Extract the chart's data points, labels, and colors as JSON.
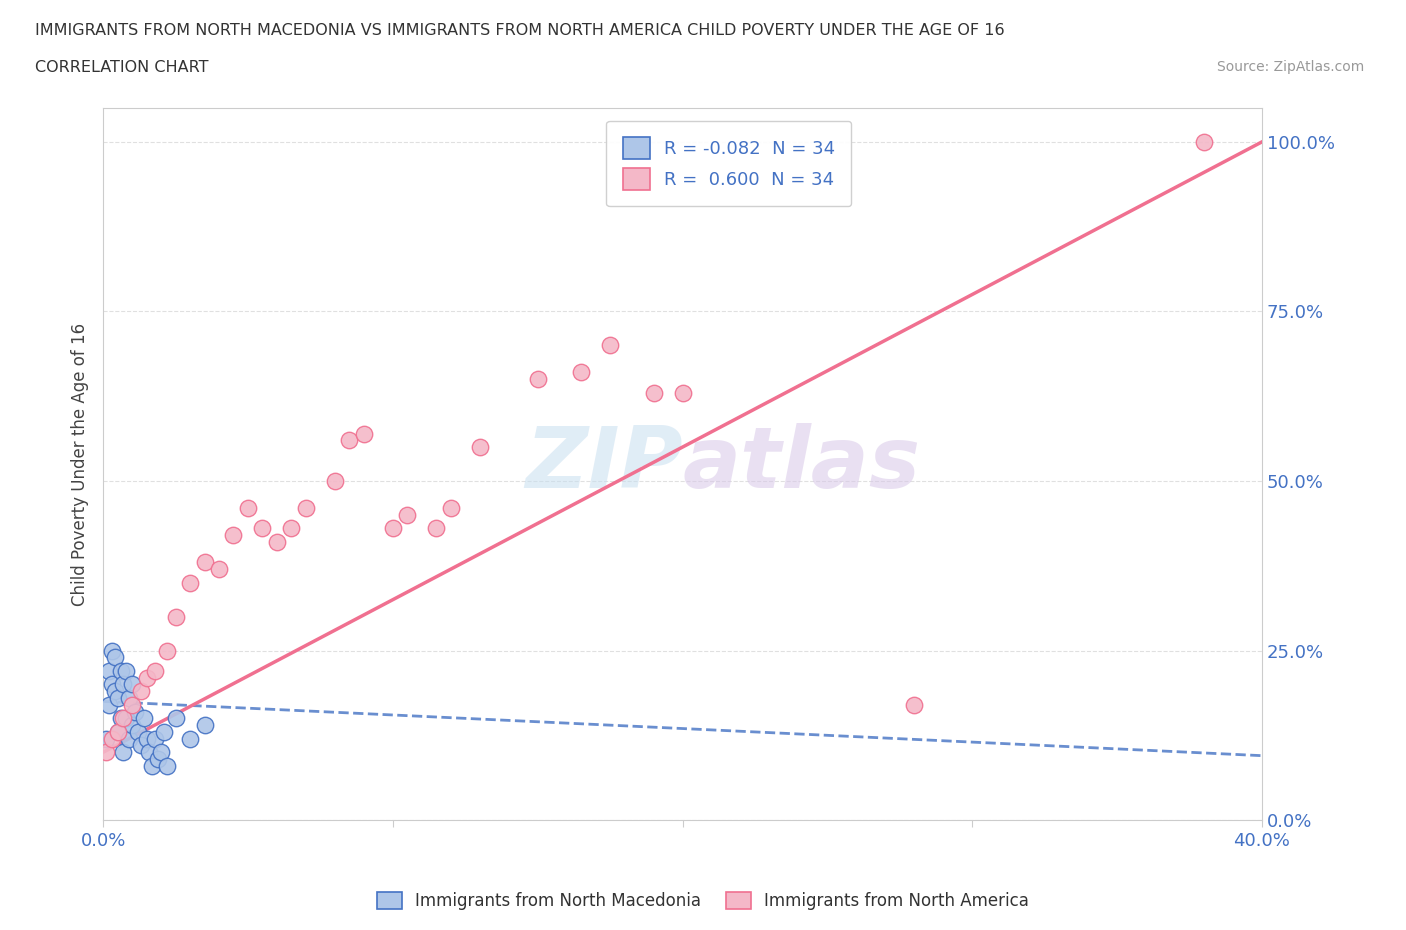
{
  "title": "IMMIGRANTS FROM NORTH MACEDONIA VS IMMIGRANTS FROM NORTH AMERICA CHILD POVERTY UNDER THE AGE OF 16",
  "subtitle": "CORRELATION CHART",
  "source": "Source: ZipAtlas.com",
  "xlabel_ticks": [
    "0.0%",
    "",
    "",
    "",
    "40.0%"
  ],
  "ylabel_ticks": [
    "0.0%",
    "25.0%",
    "50.0%",
    "75.0%",
    "100.0%"
  ],
  "xlim": [
    0.0,
    0.4
  ],
  "ylim": [
    0.0,
    1.05
  ],
  "legend_label1": "Immigrants from North Macedonia",
  "legend_label2": "Immigrants from North America",
  "R1": "-0.082",
  "R2": "0.600",
  "N1": "34",
  "N2": "34",
  "color_blue": "#aec6e8",
  "color_pink": "#f4b8c8",
  "color_blue_dark": "#4472c4",
  "color_pink_dark": "#f07090",
  "scatter_blue_x": [
    0.001,
    0.002,
    0.002,
    0.003,
    0.003,
    0.004,
    0.004,
    0.005,
    0.005,
    0.006,
    0.006,
    0.007,
    0.007,
    0.008,
    0.008,
    0.009,
    0.009,
    0.01,
    0.01,
    0.011,
    0.012,
    0.013,
    0.014,
    0.015,
    0.016,
    0.017,
    0.018,
    0.019,
    0.02,
    0.021,
    0.022,
    0.025,
    0.03,
    0.035
  ],
  "scatter_blue_y": [
    0.12,
    0.17,
    0.22,
    0.2,
    0.25,
    0.19,
    0.24,
    0.13,
    0.18,
    0.22,
    0.15,
    0.2,
    0.1,
    0.15,
    0.22,
    0.18,
    0.12,
    0.14,
    0.2,
    0.16,
    0.13,
    0.11,
    0.15,
    0.12,
    0.1,
    0.08,
    0.12,
    0.09,
    0.1,
    0.13,
    0.08,
    0.15,
    0.12,
    0.14
  ],
  "scatter_pink_x": [
    0.001,
    0.003,
    0.005,
    0.007,
    0.01,
    0.013,
    0.015,
    0.018,
    0.022,
    0.025,
    0.03,
    0.035,
    0.04,
    0.045,
    0.05,
    0.055,
    0.06,
    0.065,
    0.07,
    0.08,
    0.085,
    0.09,
    0.1,
    0.105,
    0.115,
    0.12,
    0.13,
    0.15,
    0.165,
    0.175,
    0.19,
    0.2,
    0.28,
    0.38
  ],
  "scatter_pink_y": [
    0.1,
    0.12,
    0.13,
    0.15,
    0.17,
    0.19,
    0.21,
    0.22,
    0.25,
    0.3,
    0.35,
    0.38,
    0.37,
    0.42,
    0.46,
    0.43,
    0.41,
    0.43,
    0.46,
    0.5,
    0.56,
    0.57,
    0.43,
    0.45,
    0.43,
    0.46,
    0.55,
    0.65,
    0.66,
    0.7,
    0.63,
    0.63,
    0.17,
    1.0
  ],
  "trend_blue_x0": 0.0,
  "trend_blue_x1": 0.4,
  "trend_blue_y0": 0.175,
  "trend_blue_y1": 0.095,
  "trend_pink_x0": 0.0,
  "trend_pink_x1": 0.4,
  "trend_pink_y0": 0.1,
  "trend_pink_y1": 1.0,
  "background_color": "#ffffff",
  "grid_color": "#e0e0e0"
}
